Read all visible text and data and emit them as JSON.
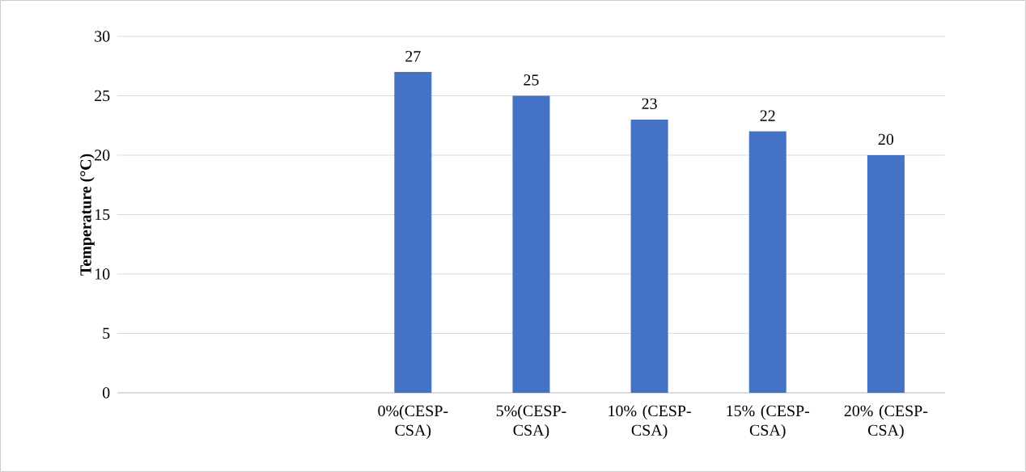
{
  "chart_data": {
    "type": "bar",
    "ylabel": "Temperature (°C)",
    "categories": [
      null,
      null,
      "0%(CESP-CSA)",
      "5%(CESP-CSA)",
      "10% (CESP-CSA)",
      "15% (CESP-CSA)",
      "20% (CESP-CSA)"
    ],
    "values": [
      null,
      null,
      27,
      25,
      23,
      22,
      20
    ],
    "color": "#4472c4",
    "ylim": [
      0,
      30
    ],
    "yticks": [
      0,
      5,
      10,
      15,
      20,
      25,
      30
    ],
    "grid": "y",
    "data_labels": true
  }
}
